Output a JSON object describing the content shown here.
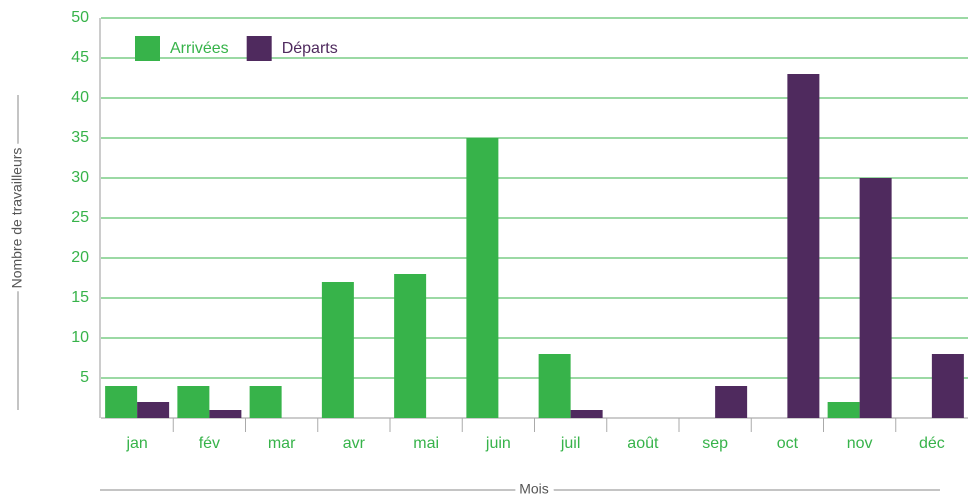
{
  "chart_data": {
    "type": "bar",
    "xlabel": "Mois",
    "ylabel": "Nombre de travailleurs",
    "categories": [
      "jan",
      "fév",
      "mar",
      "avr",
      "mai",
      "juin",
      "juil",
      "août",
      "sep",
      "oct",
      "nov",
      "déc"
    ],
    "series": [
      {
        "name": "Arrivées",
        "color": "#37b34a",
        "values": [
          4,
          4,
          4,
          17,
          18,
          35,
          8,
          0,
          0,
          0,
          2,
          0
        ]
      },
      {
        "name": "Départs",
        "color": "#4f2a5e",
        "values": [
          2,
          1,
          0,
          0,
          0,
          0,
          1,
          0,
          4,
          43,
          30,
          8
        ]
      }
    ],
    "ylim": [
      0,
      50
    ],
    "yticks": [
      5,
      10,
      15,
      20,
      25,
      30,
      35,
      40,
      45,
      50
    ],
    "grid": true,
    "legend": "top-left"
  }
}
